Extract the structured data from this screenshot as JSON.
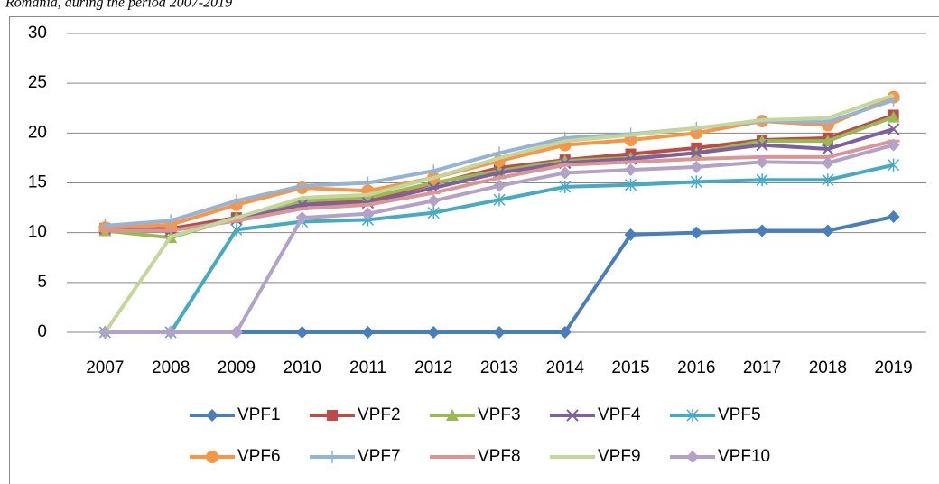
{
  "chart_data": {
    "type": "line",
    "caption": "Romania, during the period 2007-2019",
    "categories": [
      "2007",
      "2008",
      "2009",
      "2010",
      "2011",
      "2012",
      "2013",
      "2014",
      "2015",
      "2016",
      "2017",
      "2018",
      "2019"
    ],
    "ylim": [
      0,
      30
    ],
    "yticks": [
      0,
      5,
      10,
      15,
      20,
      25,
      30
    ],
    "grid": true,
    "legend": "bottom",
    "series": [
      {
        "name": "VPF1",
        "color": "#4a7ebb",
        "marker": "diamond",
        "values": [
          0,
          0,
          0,
          0,
          0,
          0,
          0,
          0,
          9.8,
          10,
          10.2,
          10.2,
          11.6
        ]
      },
      {
        "name": "VPF2",
        "color": "#be4b48",
        "marker": "square",
        "values": [
          10.3,
          10.4,
          11.5,
          12.8,
          13.3,
          14.9,
          16.5,
          17.3,
          17.9,
          18.5,
          19.3,
          19.5,
          21.8
        ]
      },
      {
        "name": "VPF3",
        "color": "#98b954",
        "marker": "triangle",
        "values": [
          10.2,
          9.5,
          11.5,
          13.2,
          13.5,
          15,
          16.2,
          17.2,
          17.5,
          18,
          19.2,
          19.2,
          21.6
        ]
      },
      {
        "name": "VPF4",
        "color": "#7d60a0",
        "marker": "x",
        "values": [
          10.4,
          10.2,
          11.3,
          12.8,
          13,
          14.5,
          16,
          17,
          17.4,
          18,
          18.8,
          18.4,
          20.4
        ]
      },
      {
        "name": "VPF5",
        "color": "#46aac5",
        "marker": "star",
        "values": [
          0,
          0,
          10.3,
          11.1,
          11.3,
          12,
          13.3,
          14.6,
          14.8,
          15.1,
          15.3,
          15.3,
          16.8
        ]
      },
      {
        "name": "VPF6",
        "color": "#f79646",
        "marker": "circle",
        "values": [
          10.5,
          10.8,
          12.8,
          14.5,
          14.2,
          15.5,
          17.2,
          18.8,
          19.3,
          20,
          21.2,
          20.8,
          23.6
        ]
      },
      {
        "name": "VPF7",
        "color": "#95b3d7",
        "marker": "plus",
        "values": [
          10.7,
          11.2,
          13.2,
          14.7,
          15,
          16.2,
          18,
          19.5,
          19.9,
          20.5,
          21.2,
          21.1,
          23.3
        ]
      },
      {
        "name": "VPF8",
        "color": "#d99694",
        "marker": "dash",
        "values": [
          10.2,
          10.2,
          11.2,
          12.4,
          12.8,
          14,
          15.5,
          16.8,
          17.1,
          17.4,
          17.6,
          17.6,
          19.2
        ]
      },
      {
        "name": "VPF9",
        "color": "#c3d69b",
        "marker": "none",
        "values": [
          0,
          9.6,
          11.5,
          13.5,
          13.8,
          15.5,
          17.5,
          19.2,
          19.8,
          20.5,
          21.3,
          21.5,
          23.8
        ]
      },
      {
        "name": "VPF10",
        "color": "#b3a2c7",
        "marker": "diamond",
        "values": [
          0,
          0,
          0,
          11.5,
          11.9,
          13.2,
          14.7,
          16,
          16.3,
          16.6,
          17.1,
          17,
          18.8
        ]
      }
    ]
  }
}
